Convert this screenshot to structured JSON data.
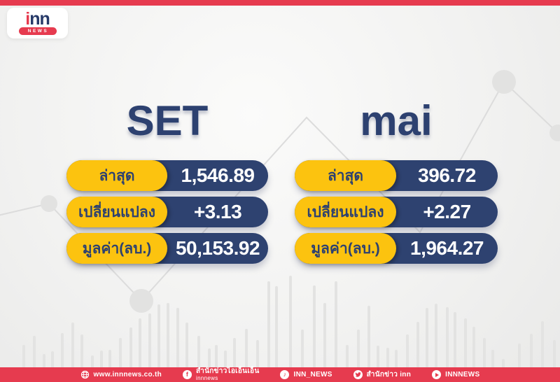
{
  "brand": {
    "logo_i": "i",
    "logo_nn": "nn",
    "logo_news": "NEWS"
  },
  "colors": {
    "red": "#e63b4f",
    "navy": "#2e4270",
    "yellow": "#fcc30f"
  },
  "boards": [
    {
      "title": "SET",
      "rows": [
        {
          "label": "ล่าสุด",
          "value": "1,546.89"
        },
        {
          "label": "เปลี่ยนแปลง",
          "value": "+3.13"
        },
        {
          "label": "มูลค่า(ลบ.)",
          "value": "50,153.92"
        }
      ]
    },
    {
      "title": "mai",
      "rows": [
        {
          "label": "ล่าสุด",
          "value": "396.72"
        },
        {
          "label": "เปลี่ยนแปลง",
          "value": "+2.27"
        },
        {
          "label": "มูลค่า(ลบ.)",
          "value": "1,964.27"
        }
      ]
    }
  ],
  "footer": {
    "items": [
      {
        "icon": "globe-icon",
        "label": "www.innnews.co.th"
      },
      {
        "icon": "facebook-icon",
        "label": "สำนักข่าวไอเอ็นเอ็น",
        "label2": "innnews"
      },
      {
        "icon": "tiktok-icon",
        "label": "INN_NEWS"
      },
      {
        "icon": "twitter-icon",
        "label": "สำนักข่าว inn"
      },
      {
        "icon": "youtube-icon",
        "label": "INNNEWS"
      }
    ]
  }
}
